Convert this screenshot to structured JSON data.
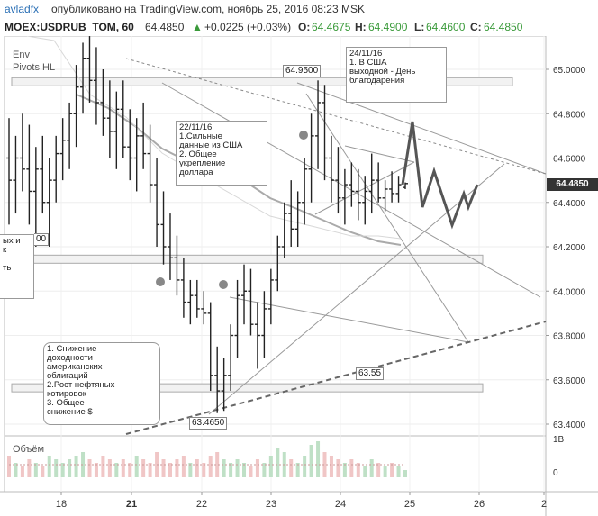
{
  "header": {
    "user": "avladfx",
    "published": "опубликовано на TradingView.com, ноябрь 25, 2016 08:23 MSK",
    "symbol": "MOEX:USDRUB_TOM, 60",
    "last": "64.4850",
    "change_icon": "arrow-up-icon",
    "change": "+0.0225 (+0.03%)",
    "o_label": "O:",
    "o": "64.4675",
    "h_label": "H:",
    "h": "64.4900",
    "l_label": "L:",
    "l": "64.4600",
    "c_label": "C:",
    "c": "64.4850"
  },
  "indicators": {
    "env": "Env",
    "pivots": "Pivots HL"
  },
  "annotations": [
    "24/11/16\n1. В США\nвыходной - День\nблагодарения",
    "22/11/16\n1.Сильные\nданные из США\n2. Общее\nукрепление\nдоллара",
    "1. Снижение\nдоходности\nамериканских\nоблигаций\n2.Рост нефтяных\nкотировок\n3. Общее\nснижение $",
    "ых и\nк\n\nть"
  ],
  "price_labels": {
    "high": "64.9500",
    "low": "63.4650",
    "level": "63.55",
    "partial": "00"
  },
  "current_price": "64.4850",
  "volume_title": "Объём",
  "colors": {
    "up": "#6ba583",
    "down": "#222222",
    "accent": "#4a8fd8",
    "line": "#999999"
  },
  "chart_data": {
    "type": "candlestick",
    "price_axis": {
      "ticks": [
        "65.0000",
        "64.8000",
        "64.6000",
        "64.4000",
        "64.2000",
        "64.0000",
        "63.8000",
        "63.6000",
        "63.4000"
      ],
      "ylim": [
        63.37,
        65.15
      ]
    },
    "time_axis": {
      "ticks": [
        "18",
        "21",
        "22",
        "23",
        "24",
        "25",
        "26",
        "2"
      ]
    },
    "volume_axis": {
      "ticks": [
        "1В",
        "0"
      ]
    },
    "candles": [
      [
        64.6,
        64.78,
        64.3,
        64.5
      ],
      [
        64.5,
        64.7,
        64.35,
        64.6
      ],
      [
        64.6,
        64.8,
        64.45,
        64.55
      ],
      [
        64.55,
        64.75,
        64.3,
        64.45
      ],
      [
        64.45,
        64.65,
        64.2,
        64.55
      ],
      [
        64.55,
        64.7,
        64.35,
        64.4
      ],
      [
        64.4,
        64.6,
        64.2,
        64.5
      ],
      [
        64.5,
        64.7,
        64.4,
        64.62
      ],
      [
        64.62,
        64.78,
        64.5,
        64.68
      ],
      [
        64.68,
        64.85,
        64.55,
        64.8
      ],
      [
        64.8,
        65.02,
        64.65,
        64.92
      ],
      [
        64.92,
        65.12,
        64.8,
        65.05
      ],
      [
        65.05,
        65.15,
        64.85,
        64.95
      ],
      [
        64.95,
        65.1,
        64.75,
        64.85
      ],
      [
        64.85,
        65.0,
        64.7,
        64.78
      ],
      [
        64.78,
        64.95,
        64.6,
        64.72
      ],
      [
        64.72,
        64.9,
        64.55,
        64.82
      ],
      [
        64.82,
        64.95,
        64.6,
        64.65
      ],
      [
        64.65,
        64.82,
        64.5,
        64.6
      ],
      [
        64.6,
        64.78,
        64.45,
        64.7
      ],
      [
        64.7,
        64.85,
        64.55,
        64.62
      ],
      [
        64.62,
        64.75,
        64.4,
        64.48
      ],
      [
        64.48,
        64.6,
        64.2,
        64.3
      ],
      [
        64.3,
        64.45,
        64.12,
        64.2
      ],
      [
        64.2,
        64.35,
        64.05,
        64.15
      ],
      [
        64.15,
        64.25,
        63.98,
        64.05
      ],
      [
        64.05,
        64.15,
        63.88,
        63.95
      ],
      [
        63.95,
        64.05,
        63.85,
        63.98
      ],
      [
        63.98,
        64.05,
        63.88,
        63.92
      ],
      [
        63.92,
        64.0,
        63.85,
        63.9
      ],
      [
        63.9,
        63.95,
        63.55,
        63.62
      ],
      [
        63.62,
        63.75,
        63.45,
        63.55
      ],
      [
        63.55,
        63.7,
        63.46,
        63.62
      ],
      [
        63.62,
        63.85,
        63.55,
        63.8
      ],
      [
        63.8,
        64.05,
        63.7,
        63.98
      ],
      [
        63.98,
        64.12,
        63.85,
        64.0
      ],
      [
        64.0,
        64.1,
        63.8,
        63.85
      ],
      [
        63.85,
        63.95,
        63.65,
        63.8
      ],
      [
        63.8,
        64.0,
        63.7,
        63.92
      ],
      [
        63.92,
        64.1,
        63.85,
        64.05
      ],
      [
        64.05,
        64.25,
        64.0,
        64.2
      ],
      [
        64.2,
        64.4,
        64.15,
        64.35
      ],
      [
        64.35,
        64.5,
        64.2,
        64.28
      ],
      [
        64.28,
        64.45,
        64.2,
        64.4
      ],
      [
        64.4,
        64.6,
        64.3,
        64.55
      ],
      [
        64.55,
        64.8,
        64.4,
        64.7
      ],
      [
        64.7,
        64.95,
        64.55,
        64.85
      ],
      [
        64.85,
        64.93,
        64.5,
        64.6
      ],
      [
        64.6,
        64.7,
        64.4,
        64.5
      ],
      [
        64.5,
        64.65,
        64.35,
        64.42
      ],
      [
        64.42,
        64.55,
        64.3,
        64.48
      ],
      [
        64.48,
        64.58,
        64.38,
        64.45
      ],
      [
        64.45,
        64.55,
        64.32,
        64.4
      ],
      [
        64.4,
        64.52,
        64.3,
        64.45
      ],
      [
        64.45,
        64.62,
        64.35,
        64.5
      ],
      [
        64.5,
        64.58,
        64.4,
        64.42
      ],
      [
        64.42,
        64.5,
        64.36,
        64.46
      ],
      [
        64.46,
        64.54,
        64.4,
        64.44
      ],
      [
        64.44,
        64.52,
        64.4,
        64.48
      ],
      [
        64.4675,
        64.49,
        64.46,
        64.485
      ]
    ],
    "volume": [
      0.6,
      0.4,
      0.3,
      0.5,
      0.4,
      0.3,
      0.6,
      0.5,
      0.4,
      0.5,
      0.6,
      0.7,
      0.5,
      0.4,
      0.6,
      0.5,
      0.4,
      0.5,
      0.4,
      0.6,
      0.5,
      0.4,
      0.7,
      0.5,
      0.4,
      0.5,
      0.6,
      0.4,
      0.5,
      0.4,
      0.6,
      0.7,
      0.5,
      0.4,
      0.5,
      0.4,
      0.3,
      0.5,
      0.4,
      0.6,
      0.8,
      0.7,
      0.5,
      0.4,
      0.6,
      0.9,
      1.0,
      0.7,
      0.6,
      0.5,
      0.4,
      0.5,
      0.4,
      0.3,
      0.5,
      0.4,
      0.3,
      0.4,
      0.3,
      0.2
    ],
    "forecast_path": [
      64.485,
      64.75,
      64.42,
      64.52,
      64.3,
      64.45,
      64.38,
      64.48
    ]
  }
}
